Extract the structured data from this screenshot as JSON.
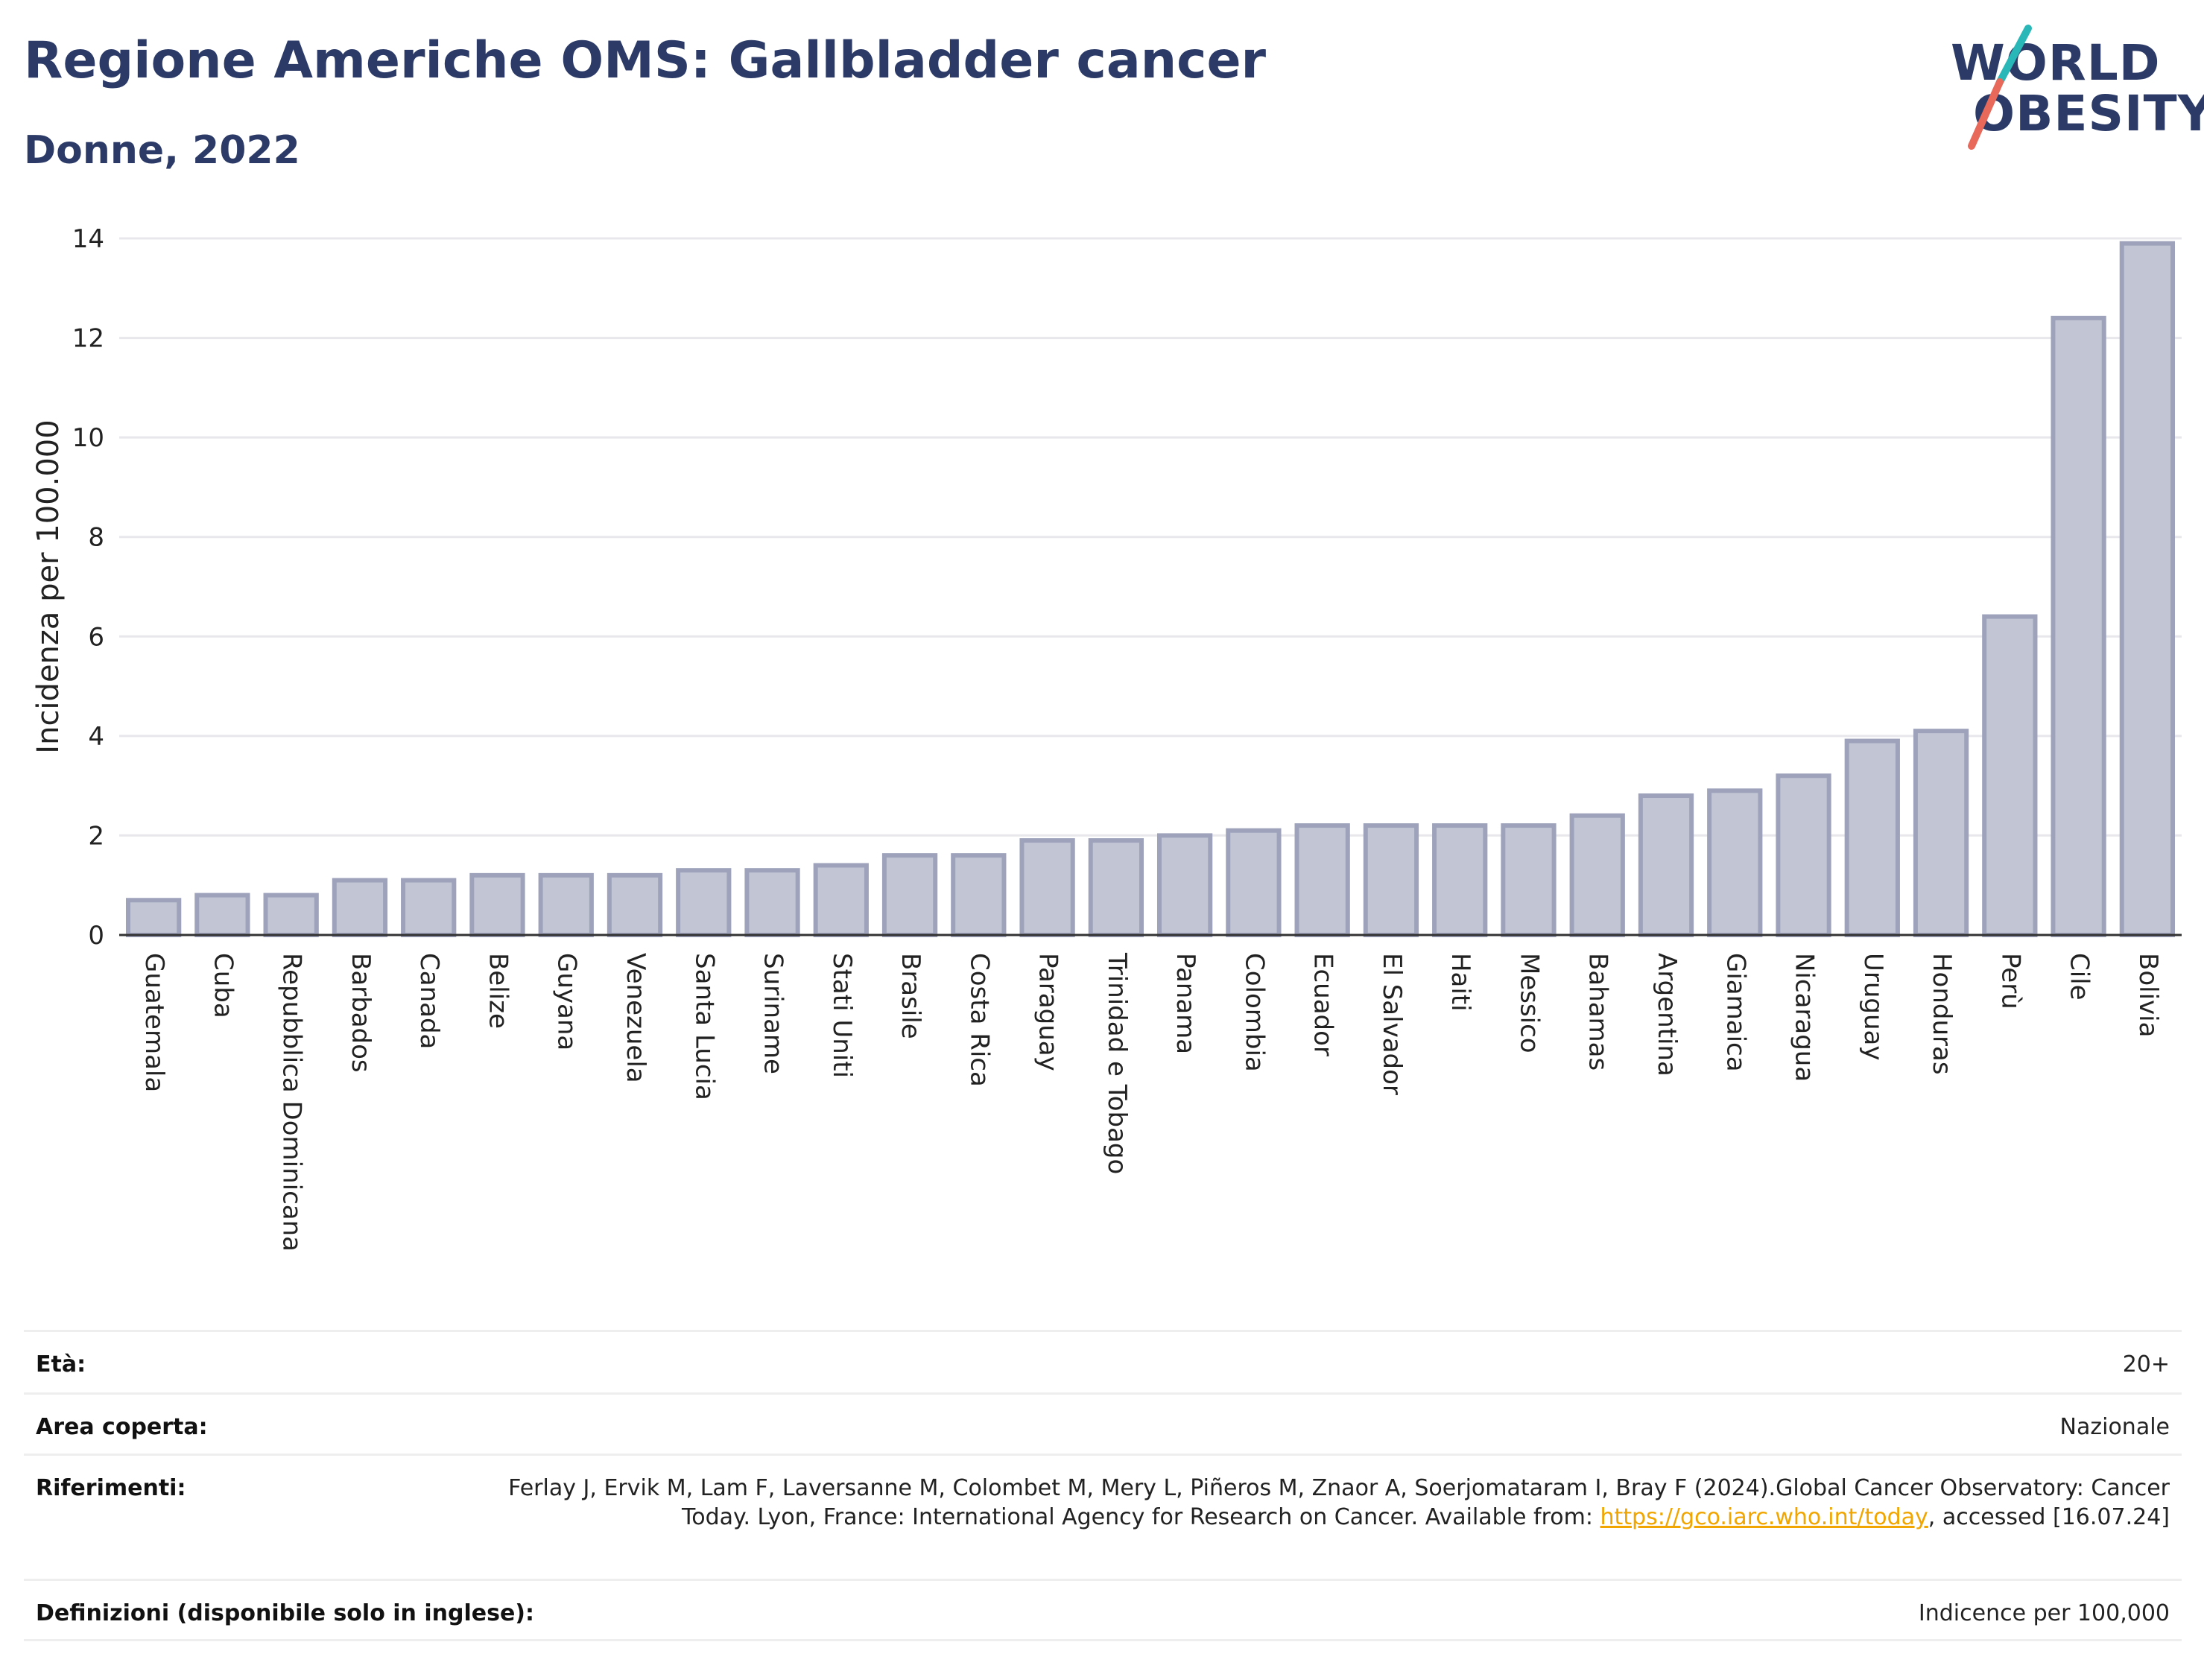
{
  "header": {
    "title": "Regione Americhe OMS: Gallbladder cancer",
    "subtitle": "Donne, 2022"
  },
  "logo": {
    "line1": "WORLD",
    "line2": "OBESITY",
    "colors": {
      "text": "#2b3a67",
      "slash_top": "#2ab7b7",
      "slash_bottom": "#e8685a"
    }
  },
  "chart_data": {
    "type": "bar",
    "ylabel": "Incidenza per 100.000",
    "ylim": [
      0,
      14
    ],
    "yticks": [
      0,
      2,
      4,
      6,
      8,
      10,
      12,
      14
    ],
    "categories": [
      "Guatemala",
      "Cuba",
      "Repubblica Dominicana",
      "Barbados",
      "Canada",
      "Belize",
      "Guyana",
      "Venezuela",
      "Santa Lucia",
      "Suriname",
      "Stati Uniti",
      "Brasile",
      "Costa Rica",
      "Paraguay",
      "Trinidad e Tobago",
      "Panama",
      "Colombia",
      "Ecuador",
      "El Salvador",
      "Haiti",
      "Messico",
      "Bahamas",
      "Argentina",
      "Giamaica",
      "Nicaragua",
      "Uruguay",
      "Honduras",
      "Perù",
      "Cile",
      "Bolivia"
    ],
    "values": [
      0.7,
      0.8,
      0.8,
      1.1,
      1.1,
      1.2,
      1.2,
      1.2,
      1.3,
      1.3,
      1.4,
      1.6,
      1.6,
      1.9,
      1.9,
      2.0,
      2.1,
      2.2,
      2.2,
      2.2,
      2.2,
      2.4,
      2.8,
      2.9,
      3.2,
      3.9,
      4.1,
      6.4,
      12.4,
      13.9
    ],
    "bar_fill": "#c2c6d4",
    "bar_stroke": "#9ea3bb",
    "grid": true,
    "legend": "none"
  },
  "info": {
    "rows": [
      {
        "label": "Età:",
        "value": "20+"
      },
      {
        "label": "Area coperta:",
        "value": "Nazionale"
      },
      {
        "label": "Riferimenti:",
        "value_pre": "Ferlay J, Ervik M, Lam F, Laversanne M, Colombet M, Mery L, Piñeros M, Znaor A, Soerjomataram I, Bray F (2024).Global Cancer Observatory: Cancer Today. Lyon, France: International Agency for Research on Cancer. Available from: ",
        "link": "https://gco.iarc.who.int/today",
        "value_post": ", accessed [16.07.24]"
      },
      {
        "label": "Definizioni (disponibile solo in inglese):",
        "value": "Indicence per 100,000"
      }
    ]
  }
}
